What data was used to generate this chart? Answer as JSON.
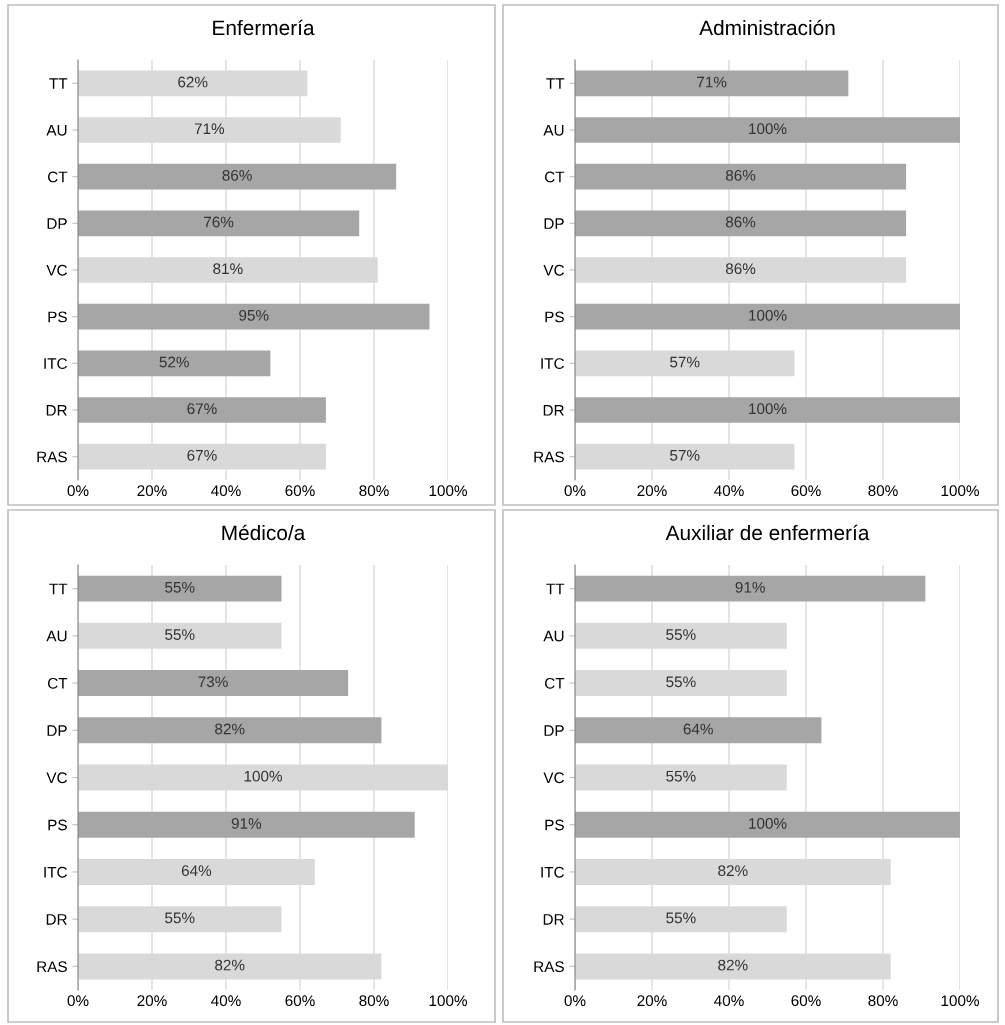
{
  "chart_data": [
    {
      "type": "bar",
      "orientation": "horizontal",
      "title": "Enfermería",
      "categories": [
        "TT",
        "AU",
        "CT",
        "DP",
        "VC",
        "PS",
        "ITC",
        "DR",
        "RAS"
      ],
      "values": [
        62,
        71,
        86,
        76,
        81,
        95,
        52,
        67,
        67
      ],
      "value_labels": [
        "62%",
        "71%",
        "86%",
        "76%",
        "81%",
        "95%",
        "52%",
        "67%",
        "67%"
      ],
      "colors": [
        "#d9d9d9",
        "#d9d9d9",
        "#a6a6a6",
        "#a6a6a6",
        "#d9d9d9",
        "#a6a6a6",
        "#a6a6a6",
        "#a6a6a6",
        "#d9d9d9"
      ],
      "xlim": [
        0,
        100
      ],
      "xticks": [
        {
          "value": 0,
          "label": "0%"
        },
        {
          "value": 20,
          "label": "20%"
        },
        {
          "value": 40,
          "label": "40%"
        },
        {
          "value": 60,
          "label": "60%"
        },
        {
          "value": 80,
          "label": "80%"
        },
        {
          "value": 100,
          "label": "100%"
        }
      ],
      "grid": "x",
      "legend": false
    },
    {
      "type": "bar",
      "orientation": "horizontal",
      "title": "Administración",
      "categories": [
        "TT",
        "AU",
        "CT",
        "DP",
        "VC",
        "PS",
        "ITC",
        "DR",
        "RAS"
      ],
      "values": [
        71,
        100,
        86,
        86,
        86,
        100,
        57,
        100,
        57
      ],
      "value_labels": [
        "71%",
        "100%",
        "86%",
        "86%",
        "86%",
        "100%",
        "57%",
        "100%",
        "57%"
      ],
      "colors": [
        "#a6a6a6",
        "#a6a6a6",
        "#a6a6a6",
        "#a6a6a6",
        "#d9d9d9",
        "#a6a6a6",
        "#d9d9d9",
        "#a6a6a6",
        "#d9d9d9"
      ],
      "xlim": [
        0,
        100
      ],
      "xticks": [
        {
          "value": 0,
          "label": "0%"
        },
        {
          "value": 20,
          "label": "20%"
        },
        {
          "value": 40,
          "label": "40%"
        },
        {
          "value": 60,
          "label": "60%"
        },
        {
          "value": 80,
          "label": "80%"
        },
        {
          "value": 100,
          "label": "100%"
        }
      ],
      "grid": "x",
      "legend": false
    },
    {
      "type": "bar",
      "orientation": "horizontal",
      "title": "Médico/a",
      "categories": [
        "TT",
        "AU",
        "CT",
        "DP",
        "VC",
        "PS",
        "ITC",
        "DR",
        "RAS"
      ],
      "values": [
        55,
        55,
        73,
        82,
        100,
        91,
        64,
        55,
        82
      ],
      "value_labels": [
        "55%",
        "55%",
        "73%",
        "82%",
        "100%",
        "91%",
        "64%",
        "55%",
        "82%"
      ],
      "colors": [
        "#a6a6a6",
        "#d9d9d9",
        "#a6a6a6",
        "#a6a6a6",
        "#d9d9d9",
        "#a6a6a6",
        "#d9d9d9",
        "#d9d9d9",
        "#d9d9d9"
      ],
      "xlim": [
        0,
        100
      ],
      "xticks": [
        {
          "value": 0,
          "label": "0%"
        },
        {
          "value": 20,
          "label": "20%"
        },
        {
          "value": 40,
          "label": "40%"
        },
        {
          "value": 60,
          "label": "60%"
        },
        {
          "value": 80,
          "label": "80%"
        },
        {
          "value": 100,
          "label": "100%"
        }
      ],
      "grid": "x",
      "legend": false
    },
    {
      "type": "bar",
      "orientation": "horizontal",
      "title": "Auxiliar de enfermería",
      "categories": [
        "TT",
        "AU",
        "CT",
        "DP",
        "VC",
        "PS",
        "ITC",
        "DR",
        "RAS"
      ],
      "values": [
        91,
        55,
        55,
        64,
        55,
        100,
        82,
        55,
        82
      ],
      "value_labels": [
        "91%",
        "55%",
        "55%",
        "64%",
        "55%",
        "100%",
        "82%",
        "55%",
        "82%"
      ],
      "colors": [
        "#a6a6a6",
        "#d9d9d9",
        "#d9d9d9",
        "#a6a6a6",
        "#d9d9d9",
        "#a6a6a6",
        "#d9d9d9",
        "#d9d9d9",
        "#d9d9d9"
      ],
      "xlim": [
        0,
        100
      ],
      "xticks": [
        {
          "value": 0,
          "label": "0%"
        },
        {
          "value": 20,
          "label": "20%"
        },
        {
          "value": 40,
          "label": "40%"
        },
        {
          "value": 60,
          "label": "60%"
        },
        {
          "value": 80,
          "label": "80%"
        },
        {
          "value": 100,
          "label": "100%"
        }
      ],
      "grid": "x",
      "legend": false
    }
  ]
}
